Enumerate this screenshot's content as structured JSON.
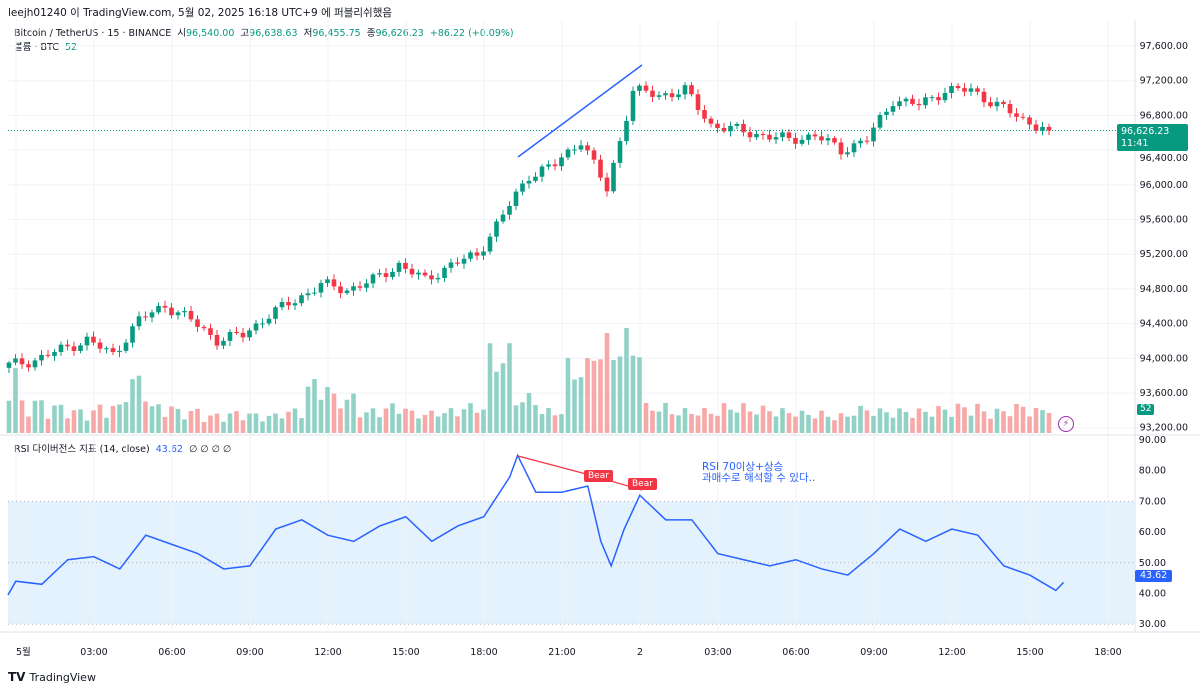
{
  "header": {
    "published": "leejh01240 이 TradingView.com, 5월 02, 2025 16:18 UTC+9 에 퍼블리쉬했음"
  },
  "legend": {
    "symbol": "Bitcoin / TetherUS · 15 · BINANCE",
    "o_label": "시",
    "o": "96,540.00",
    "h_label": "고",
    "h": "96,638.63",
    "l_label": "저",
    "l": "96,455.75",
    "c_label": "종",
    "c": "96,626.23",
    "change": "+86.22 (+0.09%)",
    "volume_label": "볼륨 · BTC",
    "volume": "52"
  },
  "price_label": {
    "price": "96,626.23",
    "countdown": "11:41"
  },
  "volume_label": "52",
  "rsi": {
    "title": "RSI 다이버전스 지표 (14, close)",
    "value": "43.62",
    "extra": "∅ ∅ ∅ ∅",
    "bear1": "Bear",
    "bear2": "Bear",
    "note1": "RSI 70이상+상승",
    "note2": "과매수로 해석할 수 있다..",
    "value_label": "43.62"
  },
  "footer": {
    "brand": "TradingView"
  },
  "colors": {
    "up": "#089981",
    "down": "#f23645",
    "rsi": "#2962ff",
    "band": "#e3f2fd",
    "bear": "#f23645"
  },
  "chart_data": [
    {
      "type": "candlestick",
      "interval": "15",
      "yaxis_ticks": [
        "97,600.00",
        "97,200.00",
        "96,800.00",
        "96,400.00",
        "96,000.00",
        "95,600.00",
        "95,200.00",
        "94,800.00",
        "94,400.00",
        "94,000.00",
        "93,600.00",
        "93,200.00"
      ],
      "ylim": [
        93200,
        97600
      ],
      "x_ticks": [
        "5월",
        "03:00",
        "06:00",
        "09:00",
        "12:00",
        "15:00",
        "18:00",
        "21:00",
        "2",
        "03:00",
        "06:00",
        "09:00",
        "12:00",
        "15:00",
        "18:00"
      ],
      "hourly_close": [
        93920,
        93980,
        94100,
        94210,
        94040,
        94440,
        94610,
        94440,
        94210,
        94270,
        94500,
        94670,
        94850,
        94790,
        94900,
        95080,
        94900,
        95080,
        95190,
        95650,
        96110,
        96230,
        96520,
        95940,
        97090,
        97030,
        97090,
        96690,
        96630,
        96570,
        96520,
        96570,
        96400,
        96520,
        96980,
        96920,
        97090,
        97090,
        96920,
        96750,
        96626.23
      ],
      "hourly_volume": [
        140,
        70,
        60,
        50,
        60,
        120,
        60,
        50,
        40,
        45,
        40,
        50,
        110,
        80,
        50,
        60,
        45,
        50,
        60,
        180,
        80,
        50,
        150,
        200,
        210,
        60,
        50,
        50,
        60,
        55,
        50,
        45,
        40,
        55,
        50,
        50,
        55,
        60,
        50,
        60,
        52
      ]
    },
    {
      "type": "line",
      "name": "RSI",
      "yaxis_ticks": [
        "90.00",
        "80.00",
        "70.00",
        "60.00",
        "50.00",
        "40.00",
        "30.00"
      ],
      "ylim": [
        28,
        90
      ],
      "band": [
        30,
        70
      ],
      "points": [
        [
          0,
          39.5
        ],
        [
          0.3,
          44
        ],
        [
          1.3,
          43
        ],
        [
          2.3,
          51
        ],
        [
          3.3,
          52
        ],
        [
          4.3,
          48
        ],
        [
          5.3,
          59
        ],
        [
          6.3,
          56
        ],
        [
          7.3,
          53
        ],
        [
          8.3,
          48
        ],
        [
          9.3,
          49
        ],
        [
          10.3,
          61
        ],
        [
          11.3,
          64
        ],
        [
          12.3,
          59
        ],
        [
          13.3,
          57
        ],
        [
          14.3,
          62
        ],
        [
          15.3,
          65
        ],
        [
          16.3,
          57
        ],
        [
          17.3,
          62
        ],
        [
          18.3,
          65
        ],
        [
          19.3,
          78
        ],
        [
          19.6,
          85
        ],
        [
          20.3,
          73
        ],
        [
          21.3,
          73
        ],
        [
          22.3,
          75
        ],
        [
          22.8,
          57
        ],
        [
          23.2,
          49
        ],
        [
          23.7,
          61
        ],
        [
          24.3,
          72
        ],
        [
          25.3,
          64
        ],
        [
          26.3,
          64
        ],
        [
          27.3,
          53
        ],
        [
          28.3,
          51
        ],
        [
          29.3,
          49
        ],
        [
          30.3,
          51
        ],
        [
          31.3,
          48
        ],
        [
          32.3,
          46
        ],
        [
          33.3,
          53
        ],
        [
          34.3,
          61
        ],
        [
          35.3,
          57
        ],
        [
          36.3,
          61
        ],
        [
          37.3,
          59
        ],
        [
          38.3,
          49
        ],
        [
          39.3,
          46
        ],
        [
          40.3,
          41
        ],
        [
          40.6,
          43.62
        ]
      ]
    }
  ]
}
